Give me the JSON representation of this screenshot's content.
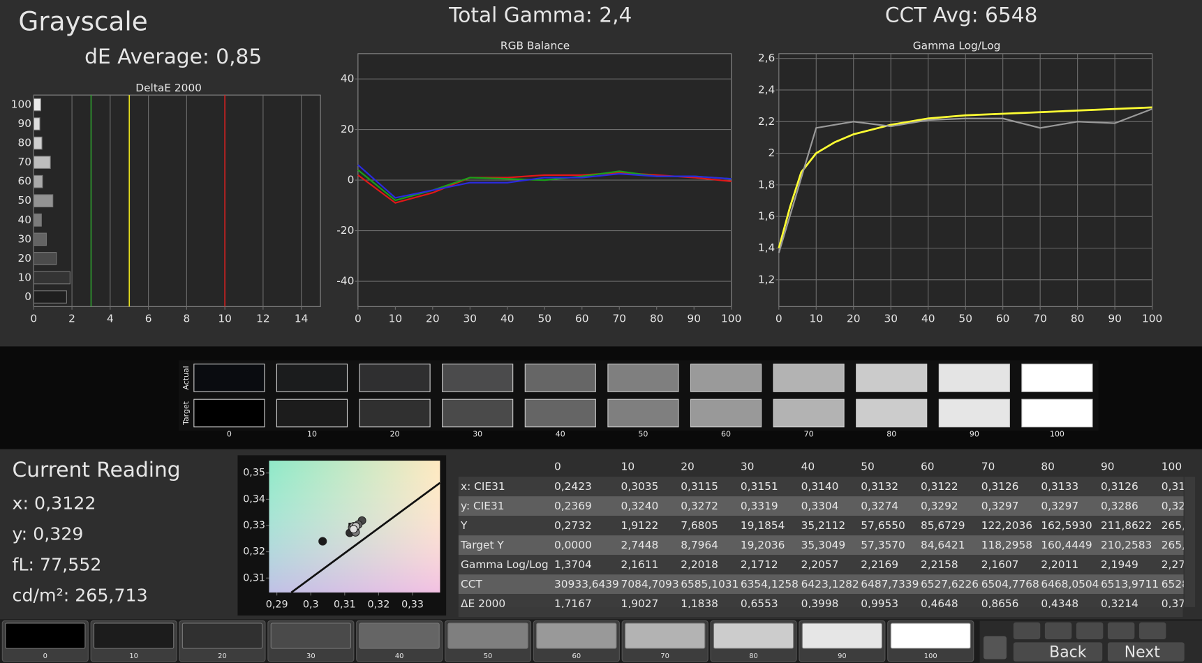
{
  "header": {
    "title": "Grayscale",
    "de_average": "dE Average: 0,85",
    "total_gamma": "Total Gamma: 2,4",
    "cct_avg": "CCT Avg: 6548"
  },
  "chart_data": [
    {
      "type": "hbar",
      "title": "DeltaE 2000",
      "categories": [
        "100",
        "90",
        "80",
        "70",
        "60",
        "50",
        "40",
        "30",
        "20",
        "10",
        "0"
      ],
      "values": [
        0.37,
        0.32,
        0.43,
        0.87,
        0.46,
        1.0,
        0.4,
        0.66,
        1.18,
        1.9,
        1.72
      ],
      "colors": [
        "#ececec",
        "#dddddd",
        "#cfcfcf",
        "#bdbdbd",
        "#a9a9a9",
        "#939393",
        "#7b7b7b",
        "#646464",
        "#4b4b4b",
        "#343434",
        "#1f1f1f"
      ],
      "xlim": [
        0,
        15
      ],
      "xticks": [
        0,
        2,
        4,
        6,
        8,
        10,
        12,
        14
      ],
      "grid": "x",
      "thresholds": [
        {
          "value": 3,
          "color": "#2f9e2f"
        },
        {
          "value": 5,
          "color": "#e6df1e"
        },
        {
          "value": 10,
          "color": "#d42020"
        }
      ]
    },
    {
      "type": "line",
      "title": "RGB Balance",
      "x": [
        0,
        10,
        20,
        30,
        40,
        50,
        60,
        70,
        80,
        90,
        100
      ],
      "xlim": [
        0,
        100
      ],
      "xticks": [
        0,
        10,
        20,
        30,
        40,
        50,
        60,
        70,
        80,
        90,
        100
      ],
      "ylim": [
        -50,
        50
      ],
      "yticks": [
        -40,
        -20,
        0,
        20,
        40
      ],
      "grid": "y",
      "series": [
        {
          "color": "#e01818",
          "values": [
            2,
            -9,
            -5,
            1,
            1,
            2,
            2,
            3,
            2,
            1,
            -0.5
          ]
        },
        {
          "color": "#1aa01a",
          "values": [
            4,
            -8,
            -4,
            1,
            0.5,
            0,
            1.5,
            3.5,
            1.5,
            1.5,
            0.5
          ]
        },
        {
          "color": "#2a2ae0",
          "values": [
            6,
            -7,
            -4,
            -1,
            -1,
            1,
            1,
            2.5,
            1.5,
            1.5,
            0.5
          ]
        }
      ]
    },
    {
      "type": "line",
      "title": "Gamma Log/Log",
      "xlim": [
        0,
        100
      ],
      "xticks": [
        0,
        10,
        20,
        30,
        40,
        50,
        60,
        70,
        80,
        90,
        100
      ],
      "ylim": [
        1.03,
        2.63
      ],
      "yticks": [
        {
          "value": 1.2,
          "label": "1,2"
        },
        {
          "value": 1.4,
          "label": "1,4"
        },
        {
          "value": 1.6,
          "label": "1,6"
        },
        {
          "value": 1.8,
          "label": "1,8"
        },
        2,
        {
          "value": 2.2,
          "label": "2,2"
        },
        {
          "value": 2.4,
          "label": "2,4"
        },
        {
          "value": 2.6,
          "label": "2,6"
        }
      ],
      "grid": "both",
      "series": [
        {
          "color": "#ffff33",
          "x": [
            0,
            3,
            6,
            10,
            15,
            20,
            30,
            40,
            50,
            60,
            80,
            100
          ],
          "values": [
            1.4,
            1.66,
            1.88,
            2.0,
            2.07,
            2.12,
            2.18,
            2.22,
            2.24,
            2.25,
            2.27,
            2.29
          ]
        },
        {
          "color": "#9a9a9a",
          "x": [
            0,
            10,
            20,
            30,
            40,
            50,
            60,
            70,
            80,
            90,
            100
          ],
          "values": [
            1.37,
            2.16,
            2.2,
            2.17,
            2.21,
            2.22,
            2.22,
            2.16,
            2.2,
            2.19,
            2.28
          ]
        }
      ]
    },
    {
      "type": "scatter",
      "xlim": [
        0.2877,
        0.3381
      ],
      "ylim": [
        0.3045,
        0.3547
      ],
      "xticks": [
        {
          "value": 0.29,
          "label": "0,29"
        },
        {
          "value": 0.3,
          "label": "0,3"
        },
        {
          "value": 0.31,
          "label": "0,31"
        },
        {
          "value": 0.32,
          "label": "0,32"
        },
        {
          "value": 0.33,
          "label": "0,33"
        }
      ],
      "yticks": [
        {
          "value": 0.31,
          "label": "0,31"
        },
        {
          "value": 0.32,
          "label": "0,32"
        },
        {
          "value": 0.33,
          "label": "0,33"
        },
        {
          "value": 0.34,
          "label": "0,34"
        },
        {
          "value": 0.35,
          "label": "0,35"
        }
      ],
      "x": [
        0.3035,
        0.3115,
        0.3151,
        0.314,
        0.3132,
        0.3122,
        0.3126,
        0.3133,
        0.3126
      ],
      "values": [
        0.324,
        0.3272,
        0.3319,
        0.3304,
        0.3274,
        0.3292,
        0.3297,
        0.3297,
        0.3286
      ],
      "colors": [
        "#1a1a1a",
        "#2e2e2e",
        "#474747",
        "#616161",
        "#7a7a7a",
        "#949494",
        "#adadad",
        "#c6c6c6",
        "#dfdfdf"
      ],
      "target": {
        "x": 0.3127,
        "y": 0.329
      }
    }
  ],
  "swatches": {
    "actual_label": "Actual",
    "target_label": "Target",
    "labels": [
      "0",
      "10",
      "20",
      "30",
      "40",
      "50",
      "60",
      "70",
      "80",
      "90",
      "100"
    ],
    "actual_colors": [
      "#0a0c10",
      "#1b1c1d",
      "#2f2f30",
      "#4b4b4c",
      "#666666",
      "#7f7f7f",
      "#9a9a9a",
      "#b3b3b3",
      "#cbcbcb",
      "#e4e4e4",
      "#ffffff"
    ],
    "target_colors": [
      "#000000",
      "#1c1c1c",
      "#303030",
      "#4a4a4a",
      "#656565",
      "#7f7f7f",
      "#999999",
      "#b3b3b3",
      "#cccccc",
      "#e6e6e6",
      "#ffffff"
    ]
  },
  "reading": {
    "title": "Current Reading",
    "x": "x: 0,3122",
    "y": "y: 0,329",
    "fl": "fL: 77,552",
    "cdm2": "cd/m²: 265,713"
  },
  "table": {
    "columns": [
      "0",
      "10",
      "20",
      "30",
      "40",
      "50",
      "60",
      "70",
      "80",
      "90",
      "100"
    ],
    "rows": [
      {
        "label": "x: CIE31",
        "cells": [
          "0,2423",
          "0,3035",
          "0,3115",
          "0,3151",
          "0,3140",
          "0,3132",
          "0,3122",
          "0,3126",
          "0,3133",
          "0,3126",
          "0,31"
        ]
      },
      {
        "label": "y: CIE31",
        "cells": [
          "0,2369",
          "0,3240",
          "0,3272",
          "0,3319",
          "0,3304",
          "0,3274",
          "0,3292",
          "0,3297",
          "0,3297",
          "0,3286",
          "0,32"
        ]
      },
      {
        "label": "Y",
        "cells": [
          "0,2732",
          "1,9122",
          "7,6805",
          "19,1854",
          "35,2112",
          "57,6550",
          "85,6729",
          "122,2036",
          "162,5930",
          "211,8622",
          "265,"
        ]
      },
      {
        "label": "Target Y",
        "cells": [
          "0,0000",
          "2,7448",
          "8,7964",
          "19,2036",
          "35,3049",
          "57,3570",
          "84,6421",
          "118,2958",
          "160,4449",
          "210,2583",
          "265,"
        ]
      },
      {
        "label": "Gamma Log/Log",
        "cells": [
          "1,3704",
          "2,1611",
          "2,2018",
          "2,1712",
          "2,2057",
          "2,2169",
          "2,2158",
          "2,1607",
          "2,2011",
          "2,1949",
          "2,27"
        ]
      },
      {
        "label": "CCT",
        "cells": [
          "30933,6439",
          "7084,7093",
          "6585,1031",
          "6354,1258",
          "6423,1282",
          "6487,7339",
          "6527,6226",
          "6504,7768",
          "6468,0504",
          "6513,9711",
          "6528"
        ]
      },
      {
        "label": "ΔE 2000",
        "cells": [
          "1,7167",
          "1,9027",
          "1,1838",
          "0,6553",
          "0,3998",
          "0,9953",
          "0,4648",
          "0,8656",
          "0,4348",
          "0,3214",
          "0,37"
        ]
      }
    ]
  },
  "buttons": {
    "labels": [
      "0",
      "10",
      "20",
      "30",
      "40",
      "50",
      "60",
      "70",
      "80",
      "90",
      "100"
    ],
    "colors": [
      "#000000",
      "#1c1c1c",
      "#303030",
      "#4a4a4a",
      "#656565",
      "#7f7f7f",
      "#999999",
      "#b3b3b3",
      "#cccccc",
      "#e6e6e6",
      "#ffffff"
    ],
    "back": "Back",
    "next": "Next"
  }
}
